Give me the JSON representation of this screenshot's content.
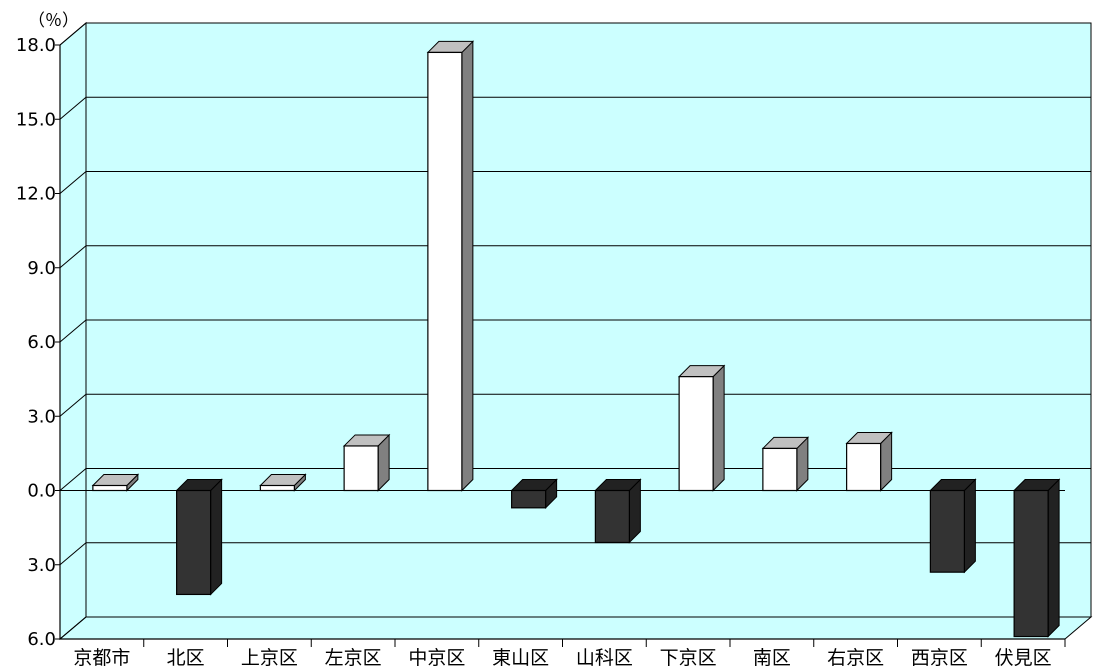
{
  "chart_data": {
    "type": "bar",
    "unit_label": "（％）",
    "categories": [
      "京都市",
      "北区",
      "上京区",
      "左京区",
      "中京区",
      "東山区",
      "山科区",
      "下京区",
      "南区",
      "右京区",
      "西京区",
      "伏見区"
    ],
    "values": [
      0.1,
      -4.2,
      0.2,
      1.8,
      17.7,
      -0.7,
      -2.1,
      4.6,
      1.7,
      1.9,
      -3.3,
      -5.9
    ],
    "ylim": [
      -6.0,
      18.0
    ],
    "yticks": [
      18.0,
      15.0,
      12.0,
      9.0,
      6.0,
      3.0,
      0.0,
      -3.0,
      -6.0
    ],
    "ytick_labels": [
      "18.0",
      "15.0",
      "12.0",
      "9.0",
      "6.0",
      "3.0",
      "0.0",
      "3.0",
      "6.0"
    ],
    "grid": true,
    "colors": {
      "plot_background": "#ccffff",
      "positive_bar": "#ffffff",
      "negative_bar": "#333333",
      "bar_side_positive": "#808080",
      "bar_top_positive": "#c0c0c0",
      "bar_side_negative": "#222222",
      "bar_top_negative": "#222222",
      "grid": "#000000"
    }
  }
}
